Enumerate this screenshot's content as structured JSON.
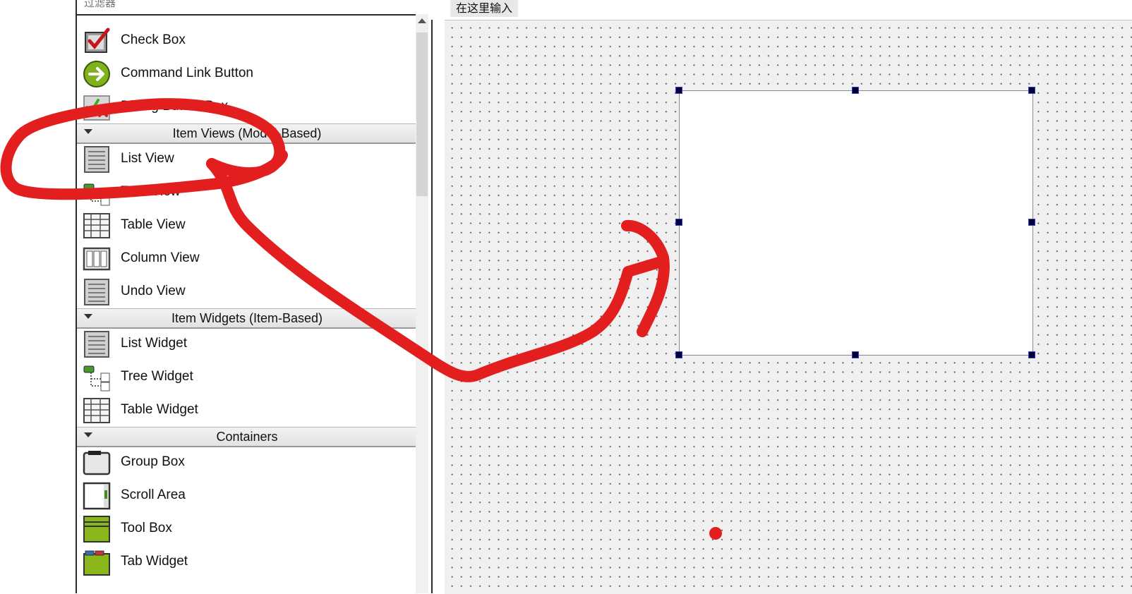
{
  "filter": {
    "placeholder": "过滤器"
  },
  "widget_box": {
    "items_top": [
      {
        "label": "Check Box",
        "icon": "check-box-icon"
      },
      {
        "label": "Command Link Button",
        "icon": "command-link-icon"
      },
      {
        "label": "Dialog Button Box",
        "icon": "dialog-button-box-icon"
      }
    ],
    "categories": [
      {
        "label": "Item Views (Model-Based)"
      },
      {
        "label": "Item Widgets (Item-Based)"
      },
      {
        "label": "Containers"
      }
    ],
    "item_views": [
      {
        "label": "List View",
        "icon": "list-view-icon"
      },
      {
        "label": "Tree View",
        "icon": "tree-view-icon"
      },
      {
        "label": "Table View",
        "icon": "table-view-icon"
      },
      {
        "label": "Column View",
        "icon": "column-view-icon"
      },
      {
        "label": "Undo View",
        "icon": "undo-view-icon"
      }
    ],
    "item_widgets": [
      {
        "label": "List Widget",
        "icon": "list-widget-icon"
      },
      {
        "label": "Tree Widget",
        "icon": "tree-widget-icon"
      },
      {
        "label": "Table Widget",
        "icon": "table-widget-icon"
      }
    ],
    "containers": [
      {
        "label": "Group Box",
        "icon": "group-box-icon"
      },
      {
        "label": "Scroll Area",
        "icon": "scroll-area-icon"
      },
      {
        "label": "Tool Box",
        "icon": "tool-box-icon"
      },
      {
        "label": "Tab Widget",
        "icon": "tab-widget-icon"
      }
    ]
  },
  "form": {
    "menu_placeholder": "在这里输入"
  },
  "colors": {
    "annotation": "#e31e1e",
    "handle": "#000033",
    "canvas_bg": "#f0f0f0"
  }
}
